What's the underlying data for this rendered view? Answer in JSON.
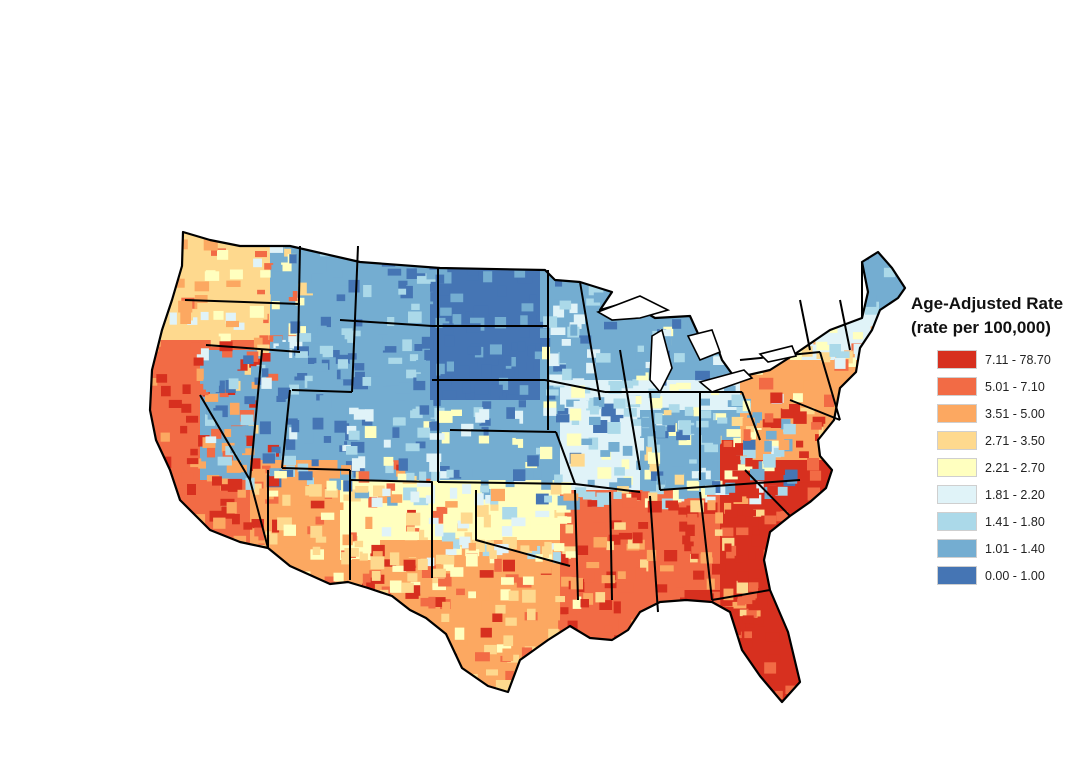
{
  "legend": {
    "title_line1": "Age-Adjusted Rate",
    "title_line2": "(rate per 100,000)",
    "classes": [
      {
        "label": "7.11 - 78.70",
        "color": "#d7301f"
      },
      {
        "label": "5.01 - 7.10",
        "color": "#f26b45"
      },
      {
        "label": "3.51 - 5.00",
        "color": "#fca861"
      },
      {
        "label": "2.71 - 3.50",
        "color": "#fed98e"
      },
      {
        "label": "2.21 - 2.70",
        "color": "#ffffbf"
      },
      {
        "label": "1.81 - 2.20",
        "color": "#e0f3f8"
      },
      {
        "label": "1.41 - 1.80",
        "color": "#abd9e9"
      },
      {
        "label": "1.01 - 1.40",
        "color": "#74add1"
      },
      {
        "label": "0.00 - 1.00",
        "color": "#4575b4"
      }
    ]
  },
  "map": {
    "subject": "contiguous-united-states",
    "unit": "county",
    "regional_classes": {
      "pacific_northwest": 3,
      "california": 1,
      "great_basin": 7,
      "southwest": 2,
      "northern_rockies": 7,
      "northern_plains": 8,
      "central_plains": 7,
      "southern_plains": 4,
      "texas": 2,
      "upper_midwest": 7,
      "ohio_valley": 5,
      "appalachia": 7,
      "deep_south": 1,
      "florida": 0,
      "carolinas": 0,
      "mid_atlantic": 2,
      "new_england": 5,
      "maine": 7
    }
  }
}
